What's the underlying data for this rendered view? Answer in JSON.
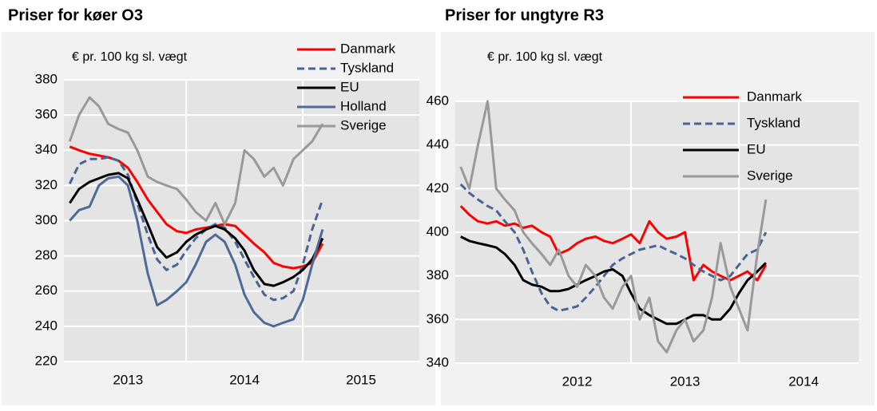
{
  "chart_data": [
    {
      "type": "line",
      "title": "Priser for køer O3",
      "subtitle": "€ pr. 100 kg sl. vægt",
      "x": [
        2013.0,
        2013.08,
        2013.17,
        2013.25,
        2013.33,
        2013.42,
        2013.5,
        2013.58,
        2013.67,
        2013.75,
        2013.83,
        2013.92,
        2014.0,
        2014.08,
        2014.17,
        2014.25,
        2014.33,
        2014.42,
        2014.5,
        2014.58,
        2014.67,
        2014.75,
        2014.83,
        2014.92,
        2015.0,
        2015.08,
        2015.17
      ],
      "series": [
        {
          "name": "Danmark",
          "color": "#ff0000",
          "dash": false,
          "values": [
            342,
            340,
            338,
            337,
            336,
            334,
            330,
            322,
            312,
            305,
            298,
            294,
            293,
            295,
            296,
            297,
            298,
            297,
            292,
            287,
            282,
            276,
            274,
            273,
            274,
            276,
            287
          ]
        },
        {
          "name": "Tyskland",
          "color": "#4a6396",
          "dash": true,
          "values": [
            321,
            332,
            335,
            335,
            336,
            334,
            326,
            310,
            292,
            278,
            272,
            275,
            283,
            290,
            295,
            298,
            296,
            288,
            278,
            268,
            258,
            255,
            256,
            260,
            275,
            295,
            312
          ]
        },
        {
          "name": "EU",
          "color": "#000000",
          "dash": false,
          "values": [
            310,
            318,
            322,
            324,
            326,
            327,
            324,
            312,
            298,
            285,
            279,
            282,
            288,
            292,
            295,
            297,
            295,
            290,
            283,
            272,
            264,
            263,
            265,
            268,
            272,
            278,
            290
          ]
        },
        {
          "name": "Holland",
          "color": "#4f6a96",
          "dash": false,
          "values": [
            300,
            306,
            308,
            320,
            324,
            325,
            320,
            300,
            270,
            252,
            255,
            260,
            265,
            275,
            288,
            292,
            288,
            275,
            258,
            248,
            242,
            240,
            242,
            244,
            255,
            275,
            295
          ]
        },
        {
          "name": "Sverige",
          "color": "#999999",
          "dash": false,
          "values": [
            345,
            360,
            370,
            365,
            355,
            352,
            350,
            340,
            325,
            322,
            320,
            318,
            312,
            305,
            300,
            310,
            298,
            310,
            340,
            335,
            325,
            330,
            320,
            335,
            340,
            345,
            355
          ]
        }
      ],
      "xlim": [
        2012.95,
        2016.0
      ],
      "xticks": [
        {
          "value": 2013.5,
          "label": "2013"
        },
        {
          "value": 2014.5,
          "label": "2014"
        },
        {
          "value": 2015.5,
          "label": "2015"
        }
      ],
      "xgrid": [
        2014,
        2015
      ],
      "ylim": [
        220,
        380
      ],
      "yticks": [
        220,
        240,
        260,
        280,
        300,
        320,
        340,
        360,
        380
      ],
      "grid": true
    },
    {
      "type": "line",
      "title": "Priser for ungtyre R3",
      "subtitle": "€ pr. 100 kg sl. vægt",
      "x": [
        2011.42,
        2011.5,
        2011.58,
        2011.67,
        2011.75,
        2011.83,
        2011.92,
        2012.0,
        2012.08,
        2012.17,
        2012.25,
        2012.33,
        2012.42,
        2012.5,
        2012.58,
        2012.67,
        2012.75,
        2012.83,
        2012.92,
        2013.0,
        2013.08,
        2013.17,
        2013.25,
        2013.33,
        2013.42,
        2013.5,
        2013.58,
        2013.67,
        2013.75,
        2013.83,
        2013.92,
        2014.0,
        2014.08,
        2014.17,
        2014.25
      ],
      "series": [
        {
          "name": "Danmark",
          "color": "#ff0000",
          "dash": false,
          "values": [
            412,
            408,
            405,
            404,
            405,
            403,
            404,
            402,
            403,
            400,
            398,
            390,
            392,
            395,
            397,
            398,
            396,
            395,
            397,
            399,
            395,
            405,
            400,
            397,
            398,
            400,
            378,
            385,
            382,
            380,
            378,
            380,
            382,
            378,
            385
          ]
        },
        {
          "name": "Tyskland",
          "color": "#4a6396",
          "dash": true,
          "values": [
            422,
            418,
            415,
            412,
            410,
            405,
            400,
            392,
            382,
            372,
            366,
            364,
            365,
            366,
            370,
            375,
            380,
            385,
            388,
            390,
            392,
            393,
            394,
            392,
            390,
            388,
            385,
            382,
            380,
            378,
            380,
            385,
            390,
            392,
            400
          ]
        },
        {
          "name": "EU",
          "color": "#000000",
          "dash": false,
          "values": [
            398,
            396,
            395,
            394,
            393,
            390,
            385,
            378,
            376,
            375,
            373,
            373,
            374,
            376,
            378,
            380,
            382,
            383,
            380,
            372,
            365,
            362,
            360,
            358,
            358,
            360,
            362,
            362,
            360,
            360,
            365,
            372,
            378,
            382,
            386
          ]
        },
        {
          "name": "Sverige",
          "color": "#999999",
          "dash": false,
          "values": [
            430,
            420,
            440,
            460,
            420,
            415,
            410,
            400,
            395,
            390,
            385,
            392,
            380,
            375,
            385,
            380,
            370,
            365,
            375,
            380,
            360,
            370,
            350,
            345,
            355,
            360,
            350,
            355,
            370,
            395,
            375,
            365,
            355,
            390,
            415
          ]
        }
      ],
      "xlim": [
        2011.37,
        2015.11
      ],
      "xticks": [
        {
          "value": 2012.5,
          "label": "2012"
        },
        {
          "value": 2013.5,
          "label": "2013"
        },
        {
          "value": 2014.6,
          "label": "2014"
        }
      ],
      "xgrid": [
        2013,
        2014
      ],
      "ylim": [
        340,
        460
      ],
      "yticks": [
        340,
        360,
        380,
        400,
        420,
        440,
        460
      ],
      "grid": true
    }
  ]
}
